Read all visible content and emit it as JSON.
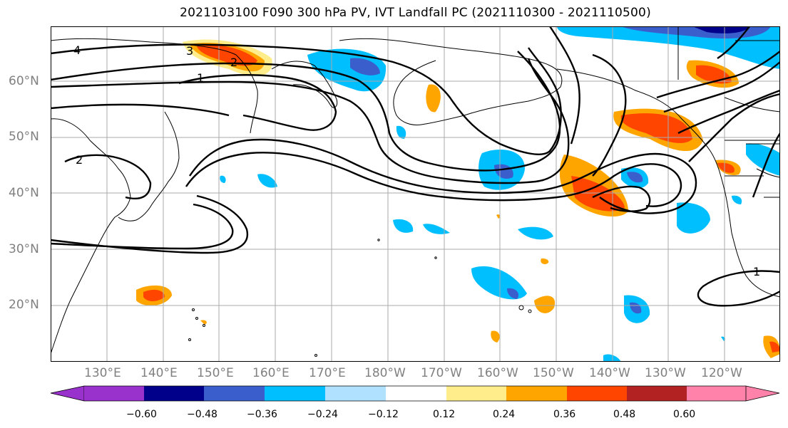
{
  "title": "2021103100 F090 300 hPa PV, IVT Landfall PC (2021110300 - 2021110500)",
  "latitude_labels": [
    "60°N",
    "50°N",
    "40°N",
    "30°N",
    "20°N"
  ],
  "longitude_labels": [
    "130°E",
    "140°E",
    "150°E",
    "160°E",
    "170°E",
    "180°W",
    "170°W",
    "160°W",
    "150°W",
    "140°W",
    "130°W",
    "120°W"
  ],
  "contour_labels": [
    "4",
    "3",
    "2",
    "1",
    "2",
    "1"
  ],
  "colorbar": {
    "ticks": [
      "−0.60",
      "−0.48",
      "−0.36",
      "−0.24",
      "−0.12",
      "0.12",
      "0.24",
      "0.36",
      "0.48",
      "0.60"
    ],
    "colors": [
      "#9932cc",
      "#00008b",
      "#3a5fcd",
      "#00bfff",
      "#b0e2ff",
      "#ffffff",
      "#ffec8b",
      "#ffa500",
      "#ff4500",
      "#b22222",
      "#ff82ab"
    ]
  }
}
